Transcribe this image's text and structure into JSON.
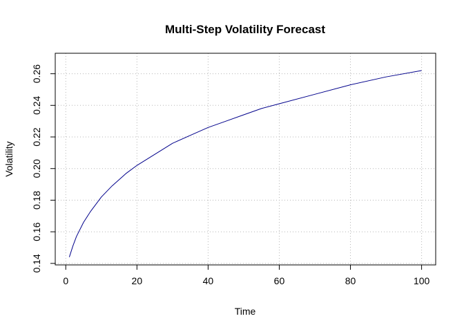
{
  "chart_data": {
    "type": "line",
    "title": "Multi-Step Volatility Forecast",
    "xlabel": "Time",
    "ylabel": "Volatility",
    "xlim": [
      1,
      100
    ],
    "ylim": [
      0.144,
      0.268
    ],
    "x_ticks": [
      0,
      20,
      40,
      60,
      80,
      100
    ],
    "x_tick_labels": [
      "0",
      "20",
      "40",
      "60",
      "80",
      "100"
    ],
    "y_ticks": [
      0.14,
      0.16,
      0.18,
      0.2,
      0.22,
      0.24,
      0.26
    ],
    "y_tick_labels": [
      "0.14",
      "0.16",
      "0.18",
      "0.20",
      "0.22",
      "0.24",
      "0.26"
    ],
    "grid": true,
    "legend": "none",
    "series": [
      {
        "color": "#00008b",
        "x": [
          1,
          2,
          3,
          5,
          7,
          10,
          13,
          17,
          20,
          25,
          30,
          35,
          40,
          45,
          50,
          55,
          60,
          70,
          80,
          90,
          100
        ],
        "values": [
          0.144,
          0.151,
          0.157,
          0.166,
          0.173,
          0.182,
          0.189,
          0.197,
          0.202,
          0.209,
          0.216,
          0.221,
          0.226,
          0.23,
          0.234,
          0.238,
          0.241,
          0.247,
          0.253,
          0.258,
          0.262
        ]
      }
    ]
  }
}
